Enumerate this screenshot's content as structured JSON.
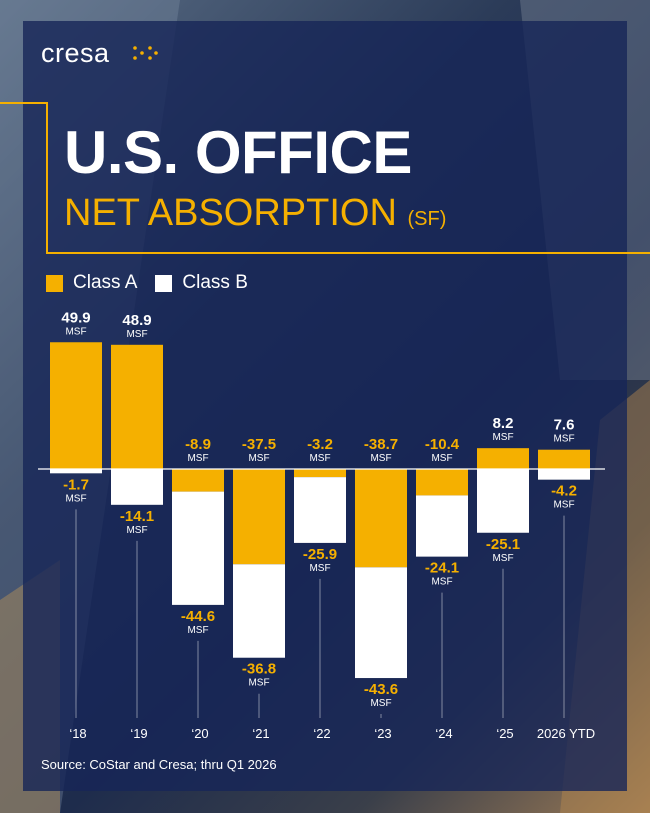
{
  "brand": {
    "name": "cresa"
  },
  "header": {
    "title": "U.S. OFFICE",
    "subtitle": "NET ABSORPTION",
    "subtitle_unit": "(SF)"
  },
  "legend": {
    "class_a": "Class A",
    "class_b": "Class B"
  },
  "colors": {
    "class_a": "#f5b000",
    "class_b": "#ffffff",
    "accent": "#f5b000"
  },
  "source": "Source: CoStar and Cresa; thru Q1 2026",
  "chart_data": {
    "type": "bar",
    "stacked": true,
    "unit": "MSF",
    "categories": [
      "‘18",
      "‘19",
      "‘20",
      "‘21",
      "‘22",
      "‘23",
      "‘24",
      "‘25",
      "2026 YTD"
    ],
    "series": [
      {
        "name": "Class A",
        "values": [
          49.9,
          48.9,
          -8.9,
          -37.5,
          -3.2,
          -38.7,
          -10.4,
          8.2,
          7.6
        ]
      },
      {
        "name": "Class B",
        "values": [
          -1.7,
          -14.1,
          -44.6,
          -36.8,
          -25.9,
          -43.6,
          -24.1,
          -25.1,
          -4.2
        ]
      }
    ],
    "grid": false,
    "legend_position": "top-left"
  }
}
